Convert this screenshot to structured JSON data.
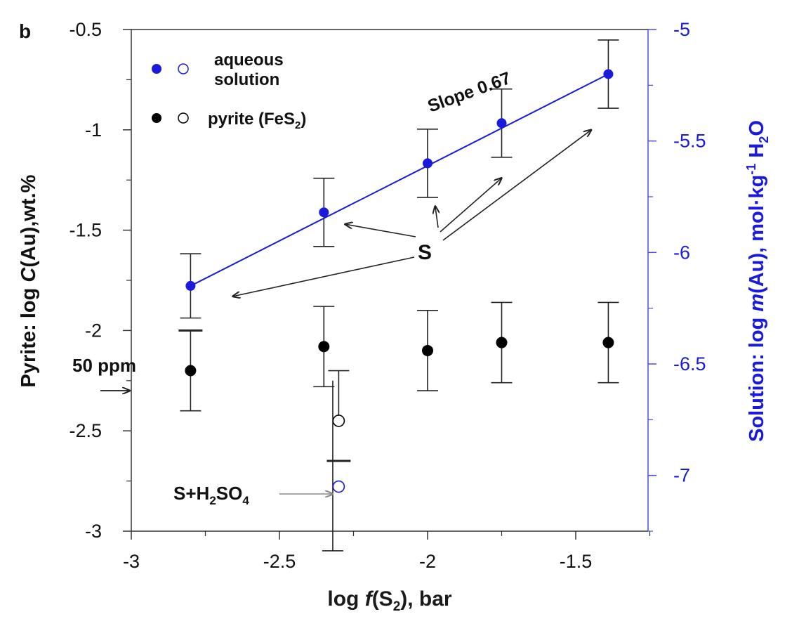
{
  "chart_data": {
    "type": "scatter",
    "panel_label": "b",
    "xlabel_parts": [
      "log ",
      "f",
      "(S",
      "2",
      "), bar"
    ],
    "ylabel_left_parts": [
      "Pyrite: log ",
      "C",
      "(Au),wt.%"
    ],
    "ylabel_right_parts": [
      "Solution: log ",
      "m",
      "(Au), mol·kg",
      "-1",
      " H",
      "2",
      "O"
    ],
    "xlim": [
      -3.0,
      -2.0,
      -1.0
    ],
    "ylim_left": [
      -3.0,
      -0.5
    ],
    "ylim_right": [
      -7.25,
      -5.0
    ],
    "x_ticks": [
      -3,
      -2.5,
      -2,
      -1.5
    ],
    "x_tick_labels": [
      "-3",
      "-2.5",
      "-2",
      "-1.5"
    ],
    "y_left_ticks": [
      -3,
      -2.5,
      -2,
      -1.5,
      -1,
      -0.5
    ],
    "y_left_tick_labels": [
      "-3",
      "-2.5",
      "-2",
      "-1.5",
      "-1",
      "-0.5"
    ],
    "y_right_ticks": [
      -7,
      -6.5,
      -6,
      -5.5,
      -5
    ],
    "y_right_tick_labels": [
      "-7",
      "-6.5",
      "-6",
      "-5.5",
      "-5"
    ],
    "colors": {
      "solution": "#1a1adc",
      "pyrite": "#000000",
      "axis": "#333333",
      "arrow": "#222222"
    },
    "series": [
      {
        "name_parts": [
          "aqueous",
          "solution"
        ],
        "axis": "right",
        "color": "#1a1adc",
        "fill": "filled",
        "x": [
          -2.8,
          -2.35,
          -2.0,
          -1.75,
          -1.39
        ],
        "y": [
          -6.15,
          -5.82,
          -5.6,
          -5.42,
          -5.2
        ],
        "err_y_left_units": [
          0.16,
          0.17,
          0.17,
          0.17,
          0.17
        ]
      },
      {
        "name_parts": [
          "pyrite (FeS",
          "2",
          ")"
        ],
        "axis": "left",
        "color": "#000000",
        "fill": "filled",
        "x": [
          -2.8,
          -2.35,
          -2.0,
          -1.75,
          -1.39
        ],
        "y": [
          -2.2,
          -2.08,
          -2.1,
          -2.06,
          -2.06
        ],
        "err_y": [
          0.2,
          0.2,
          0.2,
          0.2,
          0.2
        ]
      },
      {
        "name": "pyrite S+H2SO4",
        "axis": "left",
        "color": "#000000",
        "fill": "open",
        "x": [
          -2.3
        ],
        "y": [
          -2.45
        ],
        "err_y": [
          0.2
        ]
      },
      {
        "name": "solution S+H2SO4",
        "axis": "right",
        "color": "#1a1adc",
        "fill": "open",
        "x": [
          -2.3
        ],
        "y": [
          -7.05
        ],
        "err_y_left_units": [
          0.17
        ]
      }
    ],
    "fit_line": {
      "series": "aqueous solution",
      "from_x": -2.8,
      "to_x": -1.39,
      "label": "Slope 0.67"
    },
    "horizontal_marks": [
      {
        "x": -2.8,
        "y_left": -2.0
      },
      {
        "x": -2.3,
        "y_left": -2.65
      }
    ],
    "annotations": {
      "s_label": "S",
      "s_targets": [
        {
          "x": -2.8,
          "y_left": -1.83
        },
        {
          "x": -2.35,
          "y_left": -1.47
        },
        {
          "x": -2.01,
          "y_left": -1.38
        },
        {
          "x": -1.75,
          "y_left": -1.24
        },
        {
          "x": -1.4,
          "y_left": -1.0
        }
      ],
      "ppm_label": "50 ppm",
      "ppm_value_left": -2.3,
      "sh2so4_label_parts": [
        "S+H",
        "2",
        "SO",
        "4"
      ]
    }
  }
}
